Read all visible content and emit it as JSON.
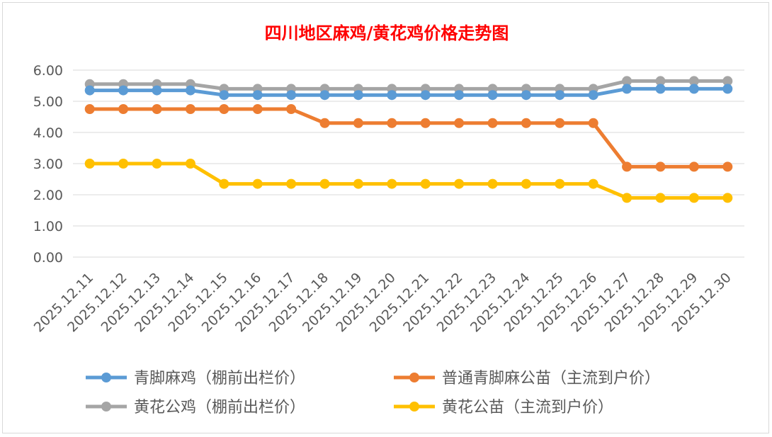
{
  "chart_data": {
    "type": "line",
    "title": "四川地区麻鸡/黄花鸡价格走势图",
    "xlabel": "",
    "ylabel": "",
    "ylim": [
      0,
      6
    ],
    "yticks": [
      "0.00",
      "1.00",
      "2.00",
      "3.00",
      "4.00",
      "5.00",
      "6.00"
    ],
    "grid": true,
    "legend_position": "bottom",
    "categories": [
      "2025.12.11",
      "2025.12.12",
      "2025.12.13",
      "2025.12.14",
      "2025.12.15",
      "2025.12.16",
      "2025.12.17",
      "2025.12.18",
      "2025.12.19",
      "2025.12.20",
      "2025.12.21",
      "2025.12.22",
      "2025.12.23",
      "2025.12.24",
      "2025.12.25",
      "2025.12.26",
      "2025.12.27",
      "2025.12.28",
      "2025.12.29",
      "2025.12.30"
    ],
    "series": [
      {
        "name": "青脚麻鸡（棚前出栏价）",
        "color": "#5b9bd5",
        "values": [
          5.35,
          5.35,
          5.35,
          5.35,
          5.2,
          5.2,
          5.2,
          5.2,
          5.2,
          5.2,
          5.2,
          5.2,
          5.2,
          5.2,
          5.2,
          5.2,
          5.4,
          5.4,
          5.4,
          5.4
        ]
      },
      {
        "name": "普通青脚麻公苗（主流到户价）",
        "color": "#ed7d31",
        "values": [
          4.75,
          4.75,
          4.75,
          4.75,
          4.75,
          4.75,
          4.75,
          4.3,
          4.3,
          4.3,
          4.3,
          4.3,
          4.3,
          4.3,
          4.3,
          4.3,
          2.9,
          2.9,
          2.9,
          2.9
        ]
      },
      {
        "name": "黄花公鸡（棚前出栏价）",
        "color": "#a5a5a5",
        "values": [
          5.55,
          5.55,
          5.55,
          5.55,
          5.4,
          5.4,
          5.4,
          5.4,
          5.4,
          5.4,
          5.4,
          5.4,
          5.4,
          5.4,
          5.4,
          5.4,
          5.65,
          5.65,
          5.65,
          5.65
        ]
      },
      {
        "name": "黄花公苗（主流到户价）",
        "color": "#ffc000",
        "values": [
          3.0,
          3.0,
          3.0,
          3.0,
          2.35,
          2.35,
          2.35,
          2.35,
          2.35,
          2.35,
          2.35,
          2.35,
          2.35,
          2.35,
          2.35,
          2.35,
          1.9,
          1.9,
          1.9,
          1.9
        ]
      }
    ]
  }
}
